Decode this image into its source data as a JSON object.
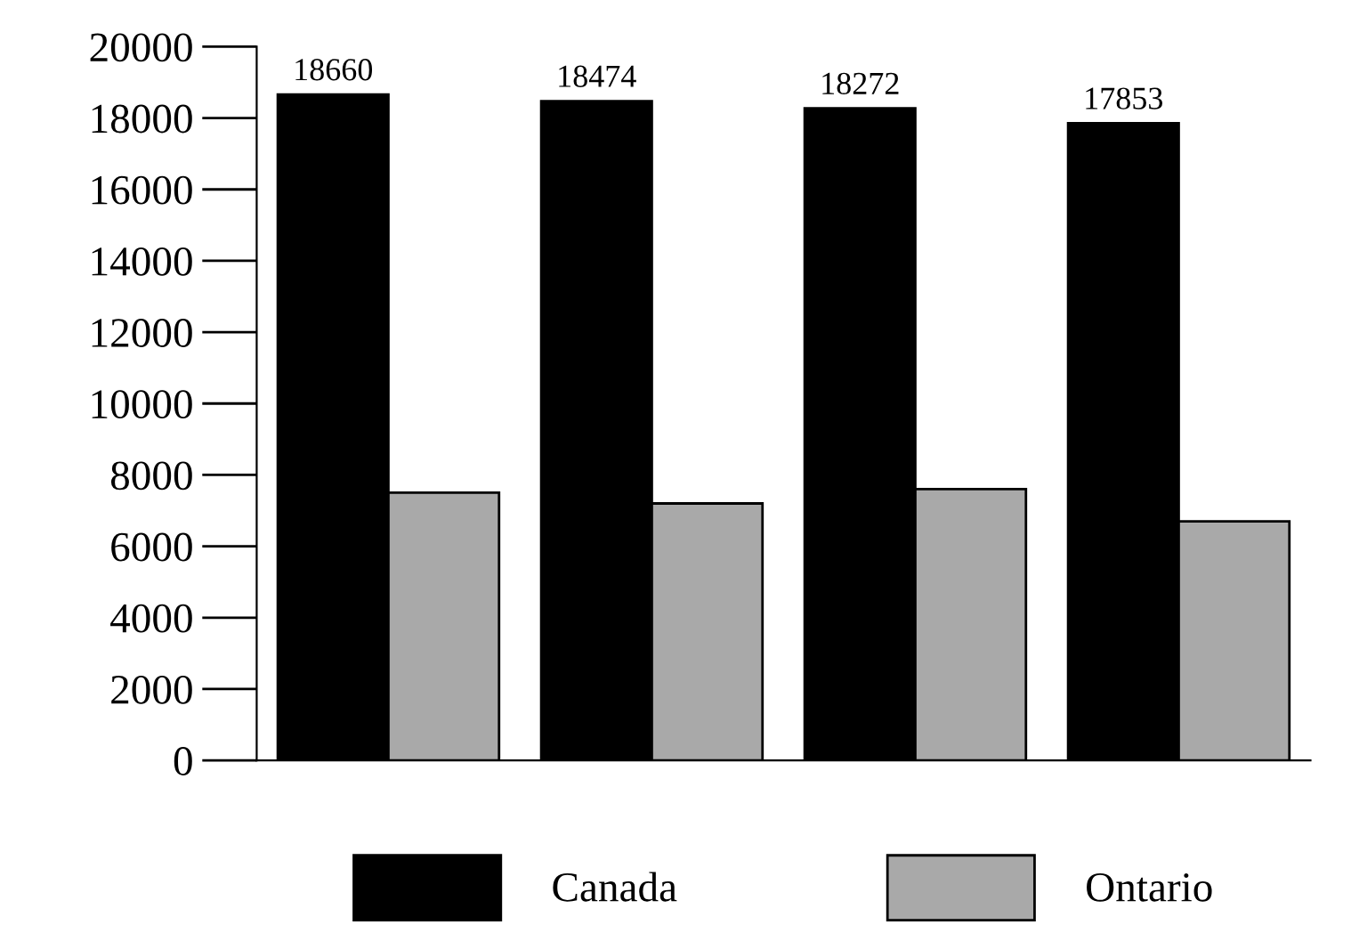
{
  "chart_data": {
    "type": "bar",
    "categories": [
      null,
      null,
      null,
      null
    ],
    "series": [
      {
        "name": "Canada",
        "color": "#000000",
        "values": [
          18660,
          18474,
          18272,
          17853
        ],
        "value_labels": [
          "18660",
          "18474",
          "18272",
          "17853"
        ]
      },
      {
        "name": "Ontario",
        "color": "#a9a9a9",
        "values": [
          7500,
          7200,
          7600,
          6700
        ]
      }
    ],
    "ylim": [
      0,
      20000
    ],
    "yticks": [
      0,
      2000,
      4000,
      6000,
      8000,
      10000,
      12000,
      14000,
      16000,
      18000,
      20000
    ],
    "grid": false,
    "legend": "bottom"
  }
}
